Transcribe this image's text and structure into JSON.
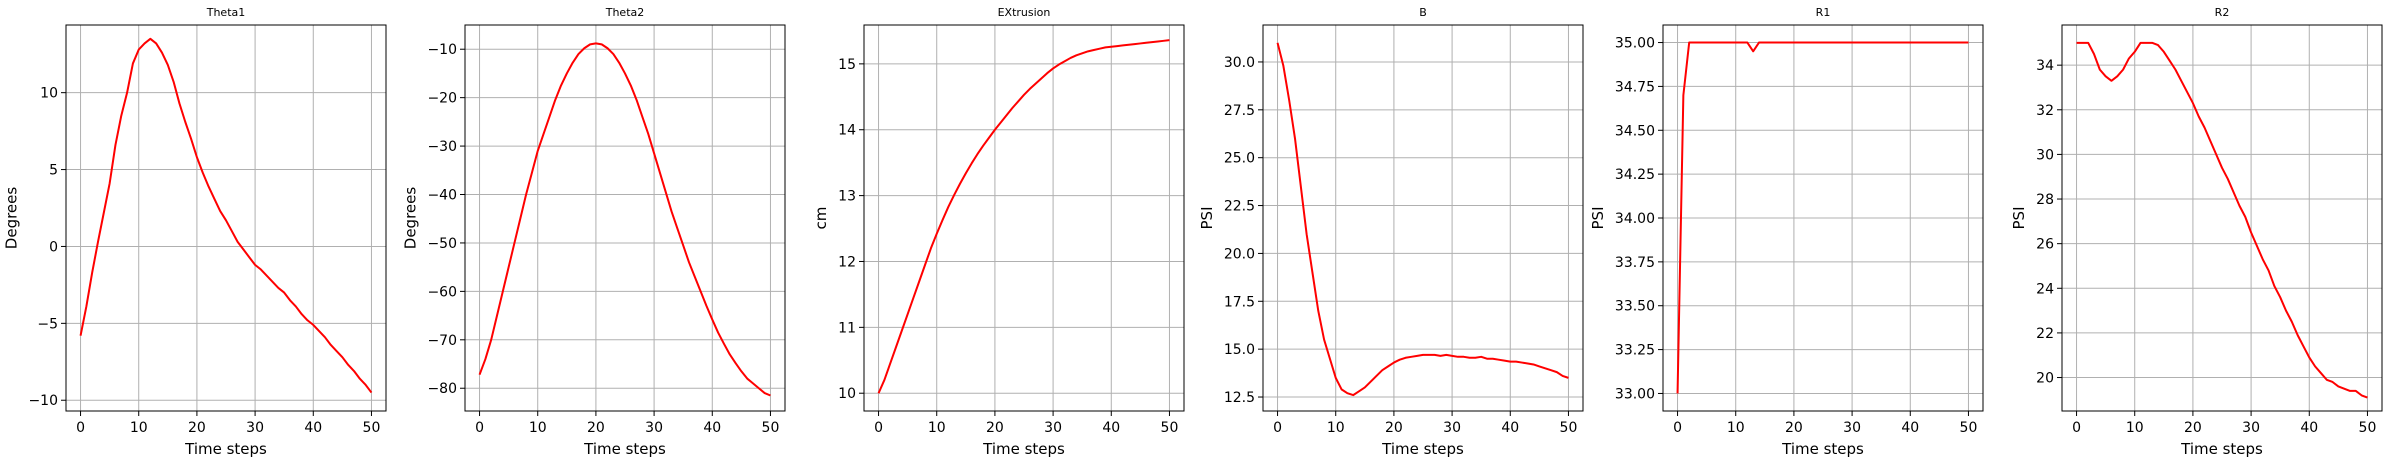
{
  "line_color": "#ff0000",
  "grid_color": "#b0b0b0",
  "chart_data": [
    {
      "type": "line",
      "title": "Theta1",
      "xlabel": "Time steps",
      "ylabel": "Degrees",
      "xlim": [
        -2.5,
        52.5
      ],
      "ylim": [
        -10.7,
        14.4
      ],
      "xticks": [
        0,
        10,
        20,
        30,
        40,
        50
      ],
      "xtick_labels": [
        "0",
        "10",
        "20",
        "30",
        "40",
        "50"
      ],
      "yticks": [
        -10,
        -5,
        0,
        5,
        10
      ],
      "ytick_labels": [
        "−10",
        "−5",
        "0",
        "5",
        "10"
      ],
      "grid": true,
      "x": [
        0,
        1,
        2,
        3,
        4,
        5,
        6,
        7,
        8,
        9,
        10,
        11,
        12,
        13,
        14,
        15,
        16,
        17,
        18,
        19,
        20,
        21,
        22,
        23,
        24,
        25,
        26,
        27,
        28,
        29,
        30,
        31,
        32,
        33,
        34,
        35,
        36,
        37,
        38,
        39,
        40,
        41,
        42,
        43,
        44,
        45,
        46,
        47,
        48,
        49,
        50
      ],
      "series": [
        {
          "values": [
            -5.8,
            -3.9,
            -1.7,
            0.3,
            2.2,
            4.1,
            6.6,
            8.5,
            10.0,
            11.9,
            12.8,
            13.2,
            13.5,
            13.2,
            12.6,
            11.8,
            10.7,
            9.3,
            8.1,
            7.0,
            5.8,
            4.8,
            3.9,
            3.1,
            2.3,
            1.7,
            1.0,
            0.3,
            -0.2,
            -0.7,
            -1.2,
            -1.5,
            -1.9,
            -2.3,
            -2.7,
            -3.0,
            -3.5,
            -3.9,
            -4.4,
            -4.8,
            -5.1,
            -5.5,
            -5.9,
            -6.4,
            -6.8,
            -7.2,
            -7.7,
            -8.1,
            -8.6,
            -9.0,
            -9.5
          ]
        }
      ]
    },
    {
      "type": "line",
      "title": "Theta2",
      "xlabel": "Time steps",
      "ylabel": "Degrees",
      "xlim": [
        -2.5,
        52.5
      ],
      "ylim": [
        -84.7,
        -5.0
      ],
      "xticks": [
        0,
        10,
        20,
        30,
        40,
        50
      ],
      "xtick_labels": [
        "0",
        "10",
        "20",
        "30",
        "40",
        "50"
      ],
      "yticks": [
        -80,
        -70,
        -60,
        -50,
        -40,
        -30,
        -20,
        -10
      ],
      "ytick_labels": [
        "−80",
        "−70",
        "−60",
        "−50",
        "−40",
        "−30",
        "−20",
        "−10"
      ],
      "grid": true,
      "x": [
        0,
        1,
        2,
        3,
        4,
        5,
        6,
        7,
        8,
        9,
        10,
        11,
        12,
        13,
        14,
        15,
        16,
        17,
        18,
        19,
        20,
        21,
        22,
        23,
        24,
        25,
        26,
        27,
        28,
        29,
        30,
        31,
        32,
        33,
        34,
        35,
        36,
        37,
        38,
        39,
        40,
        41,
        42,
        43,
        44,
        45,
        46,
        47,
        48,
        49,
        50
      ],
      "series": [
        {
          "values": [
            -77.2,
            -74.0,
            -70.0,
            -65.0,
            -60.0,
            -55.0,
            -50.0,
            -45.0,
            -40.0,
            -35.5,
            -31.0,
            -27.5,
            -24.0,
            -20.5,
            -17.5,
            -15.0,
            -12.8,
            -11.0,
            -9.8,
            -9.0,
            -8.8,
            -9.0,
            -9.8,
            -11.0,
            -12.8,
            -15.0,
            -17.5,
            -20.5,
            -24.0,
            -27.5,
            -31.5,
            -35.5,
            -39.5,
            -43.5,
            -47.0,
            -50.5,
            -54.0,
            -57.0,
            -60.0,
            -63.0,
            -65.8,
            -68.5,
            -70.8,
            -73.0,
            -74.8,
            -76.5,
            -78.0,
            -79.0,
            -80.0,
            -81.0,
            -81.5
          ]
        }
      ]
    },
    {
      "type": "line",
      "title": "EXtrusion",
      "xlabel": "Time steps",
      "ylabel": "cm",
      "xlim": [
        -2.5,
        52.5
      ],
      "ylim": [
        9.73,
        15.59
      ],
      "xticks": [
        0,
        10,
        20,
        30,
        40,
        50
      ],
      "xtick_labels": [
        "0",
        "10",
        "20",
        "30",
        "40",
        "50"
      ],
      "yticks": [
        10,
        11,
        12,
        13,
        14,
        15
      ],
      "ytick_labels": [
        "10",
        "11",
        "12",
        "13",
        "14",
        "15"
      ],
      "grid": true,
      "x": [
        0,
        1,
        2,
        3,
        4,
        5,
        6,
        7,
        8,
        9,
        10,
        11,
        12,
        13,
        14,
        15,
        16,
        17,
        18,
        19,
        20,
        21,
        22,
        23,
        24,
        25,
        26,
        27,
        28,
        29,
        30,
        31,
        32,
        33,
        34,
        35,
        36,
        37,
        38,
        39,
        40,
        41,
        42,
        43,
        44,
        45,
        46,
        47,
        48,
        49,
        50
      ],
      "series": [
        {
          "values": [
            10.0,
            10.2,
            10.45,
            10.7,
            10.95,
            11.2,
            11.45,
            11.7,
            11.95,
            12.2,
            12.42,
            12.63,
            12.83,
            13.01,
            13.18,
            13.34,
            13.49,
            13.63,
            13.76,
            13.88,
            14.0,
            14.11,
            14.22,
            14.33,
            14.43,
            14.53,
            14.62,
            14.7,
            14.78,
            14.86,
            14.93,
            14.99,
            15.04,
            15.09,
            15.13,
            15.16,
            15.19,
            15.21,
            15.23,
            15.25,
            15.26,
            15.27,
            15.28,
            15.29,
            15.3,
            15.31,
            15.32,
            15.33,
            15.34,
            15.35,
            15.36
          ]
        }
      ]
    },
    {
      "type": "line",
      "title": "B",
      "xlabel": "Time steps",
      "ylabel": "PSI",
      "xlim": [
        -2.5,
        52.5
      ],
      "ylim": [
        11.77,
        31.93
      ],
      "xticks": [
        0,
        10,
        20,
        30,
        40,
        50
      ],
      "xtick_labels": [
        "0",
        "10",
        "20",
        "30",
        "40",
        "50"
      ],
      "yticks": [
        12.5,
        15.0,
        17.5,
        20.0,
        22.5,
        25.0,
        27.5,
        30.0
      ],
      "ytick_labels": [
        "12.5",
        "15.0",
        "17.5",
        "20.0",
        "22.5",
        "25.0",
        "27.5",
        "30.0"
      ],
      "grid": true,
      "x": [
        0,
        1,
        2,
        3,
        4,
        5,
        6,
        7,
        8,
        9,
        10,
        11,
        12,
        13,
        14,
        15,
        16,
        17,
        18,
        19,
        20,
        21,
        22,
        23,
        24,
        25,
        26,
        27,
        28,
        29,
        30,
        31,
        32,
        33,
        34,
        35,
        36,
        37,
        38,
        39,
        40,
        41,
        42,
        43,
        44,
        45,
        46,
        47,
        48,
        49,
        50
      ],
      "series": [
        {
          "values": [
            31.0,
            29.8,
            28.0,
            26.0,
            23.5,
            21.0,
            19.0,
            17.0,
            15.5,
            14.5,
            13.5,
            12.9,
            12.7,
            12.6,
            12.8,
            13.0,
            13.3,
            13.6,
            13.9,
            14.1,
            14.3,
            14.45,
            14.55,
            14.6,
            14.65,
            14.7,
            14.7,
            14.7,
            14.65,
            14.7,
            14.65,
            14.6,
            14.6,
            14.55,
            14.55,
            14.6,
            14.5,
            14.5,
            14.45,
            14.4,
            14.35,
            14.35,
            14.3,
            14.25,
            14.2,
            14.1,
            14.0,
            13.9,
            13.8,
            13.6,
            13.5
          ]
        }
      ]
    },
    {
      "type": "line",
      "title": "R1",
      "xlabel": "Time steps",
      "ylabel": "PSI",
      "xlim": [
        -2.5,
        52.5
      ],
      "ylim": [
        32.9,
        35.1
      ],
      "xticks": [
        0,
        10,
        20,
        30,
        40,
        50
      ],
      "xtick_labels": [
        "0",
        "10",
        "20",
        "30",
        "40",
        "50"
      ],
      "yticks": [
        33.0,
        33.25,
        33.5,
        33.75,
        34.0,
        34.25,
        34.5,
        34.75,
        35.0
      ],
      "ytick_labels": [
        "33.00",
        "33.25",
        "33.50",
        "33.75",
        "34.00",
        "34.25",
        "34.50",
        "34.75",
        "35.00"
      ],
      "grid": true,
      "x": [
        0,
        1,
        2,
        3,
        4,
        5,
        6,
        7,
        8,
        9,
        10,
        11,
        12,
        13,
        14,
        15,
        16,
        17,
        18,
        19,
        20,
        21,
        22,
        23,
        24,
        25,
        26,
        27,
        28,
        29,
        30,
        31,
        32,
        33,
        34,
        35,
        36,
        37,
        38,
        39,
        40,
        41,
        42,
        43,
        44,
        45,
        46,
        47,
        48,
        49,
        50
      ],
      "series": [
        {
          "values": [
            33.0,
            34.7,
            35.0,
            35.0,
            35.0,
            35.0,
            35.0,
            35.0,
            35.0,
            35.0,
            35.0,
            35.0,
            35.0,
            34.95,
            35.0,
            35.0,
            35.0,
            35.0,
            35.0,
            35.0,
            35.0,
            35.0,
            35.0,
            35.0,
            35.0,
            35.0,
            35.0,
            35.0,
            35.0,
            35.0,
            35.0,
            35.0,
            35.0,
            35.0,
            35.0,
            35.0,
            35.0,
            35.0,
            35.0,
            35.0,
            35.0,
            35.0,
            35.0,
            35.0,
            35.0,
            35.0,
            35.0,
            35.0,
            35.0,
            35.0,
            35.0
          ]
        }
      ]
    },
    {
      "type": "line",
      "title": "R2",
      "xlabel": "Time steps",
      "ylabel": "PSI",
      "xlim": [
        -2.5,
        52.5
      ],
      "ylim": [
        18.5,
        35.8
      ],
      "xticks": [
        0,
        10,
        20,
        30,
        40,
        50
      ],
      "xtick_labels": [
        "0",
        "10",
        "20",
        "30",
        "40",
        "50"
      ],
      "yticks": [
        20,
        22,
        24,
        26,
        28,
        30,
        32,
        34
      ],
      "ytick_labels": [
        "20",
        "22",
        "24",
        "26",
        "28",
        "30",
        "32",
        "34"
      ],
      "grid": true,
      "x": [
        0,
        1,
        2,
        3,
        4,
        5,
        6,
        7,
        8,
        9,
        10,
        11,
        12,
        13,
        14,
        15,
        16,
        17,
        18,
        19,
        20,
        21,
        22,
        23,
        24,
        25,
        26,
        27,
        28,
        29,
        30,
        31,
        32,
        33,
        34,
        35,
        36,
        37,
        38,
        39,
        40,
        41,
        42,
        43,
        44,
        45,
        46,
        47,
        48,
        49,
        50
      ],
      "series": [
        {
          "values": [
            35.0,
            35.0,
            35.0,
            34.5,
            33.8,
            33.5,
            33.3,
            33.5,
            33.8,
            34.3,
            34.6,
            35.0,
            35.0,
            35.0,
            34.9,
            34.6,
            34.2,
            33.8,
            33.3,
            32.8,
            32.3,
            31.7,
            31.2,
            30.6,
            30.0,
            29.4,
            28.9,
            28.3,
            27.7,
            27.2,
            26.5,
            25.9,
            25.3,
            24.8,
            24.1,
            23.6,
            23.0,
            22.5,
            21.9,
            21.4,
            20.9,
            20.5,
            20.2,
            19.9,
            19.8,
            19.6,
            19.5,
            19.4,
            19.4,
            19.2,
            19.1
          ]
        }
      ]
    }
  ]
}
